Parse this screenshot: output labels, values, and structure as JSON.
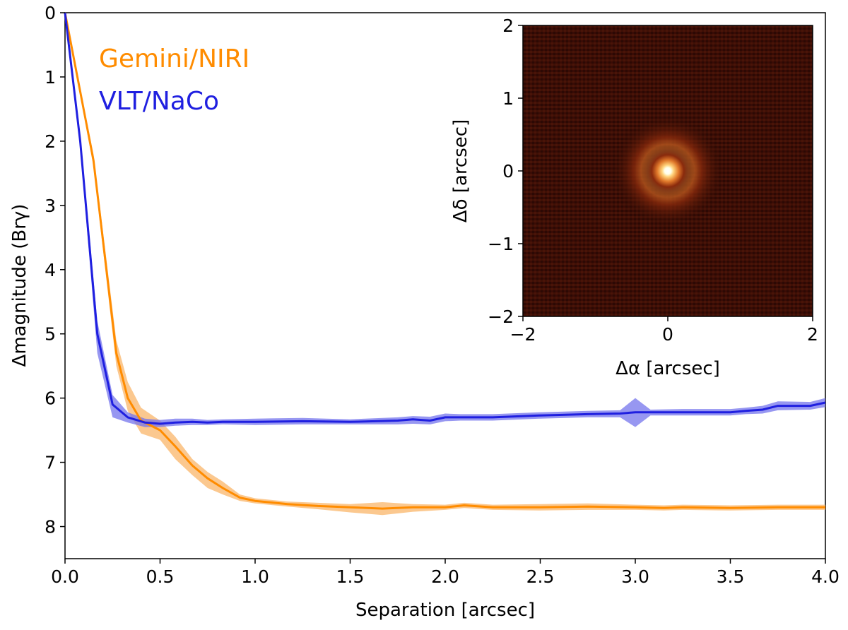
{
  "chart_data": [
    {
      "type": "line",
      "title": "",
      "xlabel": "Separation [arcsec]",
      "ylabel": "Δmagnitude (Brγ)",
      "xlim": [
        0.0,
        4.0
      ],
      "ylim": [
        8.5,
        0.0
      ],
      "y_inverted": true,
      "xticks": [
        "0.0",
        "0.5",
        "1.0",
        "1.5",
        "2.0",
        "2.5",
        "3.0",
        "3.5",
        "4.0"
      ],
      "yticks": [
        "0",
        "1",
        "2",
        "3",
        "4",
        "5",
        "6",
        "7",
        "8"
      ],
      "legend_position": "top-left",
      "series": [
        {
          "name": "Gemini/NIRI",
          "color": "#ff8c00",
          "band_color": "#f9b66a",
          "x": [
            0.0,
            0.15,
            0.27,
            0.33,
            0.4,
            0.5,
            0.58,
            0.67,
            0.75,
            0.83,
            0.92,
            1.0,
            1.17,
            1.33,
            1.5,
            1.67,
            1.83,
            2.0,
            2.1,
            2.25,
            2.5,
            2.75,
            3.0,
            3.15,
            3.25,
            3.5,
            3.75,
            4.0
          ],
          "values": [
            0.0,
            2.3,
            5.3,
            6.0,
            6.35,
            6.5,
            6.75,
            7.05,
            7.25,
            7.4,
            7.55,
            7.6,
            7.65,
            7.68,
            7.7,
            7.72,
            7.7,
            7.7,
            7.67,
            7.7,
            7.7,
            7.69,
            7.7,
            7.71,
            7.7,
            7.71,
            7.7,
            7.7
          ],
          "lower": [
            0.0,
            2.2,
            5.1,
            5.75,
            6.15,
            6.35,
            6.6,
            6.95,
            7.15,
            7.3,
            7.5,
            7.56,
            7.61,
            7.63,
            7.65,
            7.62,
            7.65,
            7.66,
            7.63,
            7.66,
            7.65,
            7.64,
            7.66,
            7.67,
            7.66,
            7.67,
            7.66,
            7.66
          ],
          "upper": [
            0.0,
            2.4,
            5.5,
            6.2,
            6.55,
            6.65,
            6.95,
            7.2,
            7.4,
            7.5,
            7.6,
            7.64,
            7.69,
            7.73,
            7.78,
            7.82,
            7.77,
            7.74,
            7.71,
            7.74,
            7.75,
            7.74,
            7.74,
            7.75,
            7.74,
            7.75,
            7.74,
            7.74
          ]
        },
        {
          "name": "VLT/NaCo",
          "color": "#1f1fe0",
          "band_color": "#7474ec",
          "x": [
            0.0,
            0.08,
            0.17,
            0.25,
            0.33,
            0.42,
            0.5,
            0.58,
            0.67,
            0.75,
            0.83,
            1.0,
            1.25,
            1.5,
            1.75,
            1.83,
            1.92,
            2.0,
            2.08,
            2.25,
            2.5,
            2.75,
            2.92,
            3.0,
            3.08,
            3.25,
            3.5,
            3.58,
            3.67,
            3.75,
            3.92,
            4.0
          ],
          "values": [
            0.0,
            2.0,
            5.0,
            6.1,
            6.3,
            6.38,
            6.4,
            6.38,
            6.37,
            6.38,
            6.37,
            6.37,
            6.36,
            6.37,
            6.35,
            6.33,
            6.35,
            6.3,
            6.3,
            6.3,
            6.27,
            6.25,
            6.24,
            6.22,
            6.22,
            6.22,
            6.22,
            6.2,
            6.18,
            6.12,
            6.12,
            6.07
          ],
          "lower": [
            0.0,
            1.9,
            4.8,
            5.95,
            6.22,
            6.32,
            6.34,
            6.32,
            6.32,
            6.34,
            6.33,
            6.32,
            6.31,
            6.33,
            6.3,
            6.28,
            6.29,
            6.24,
            6.25,
            6.25,
            6.22,
            6.2,
            6.19,
            6.0,
            6.18,
            6.17,
            6.17,
            6.15,
            6.12,
            6.05,
            6.06,
            6.0
          ],
          "upper": [
            0.0,
            2.1,
            5.3,
            6.3,
            6.38,
            6.45,
            6.45,
            6.43,
            6.42,
            6.42,
            6.41,
            6.42,
            6.41,
            6.41,
            6.41,
            6.4,
            6.41,
            6.36,
            6.35,
            6.35,
            6.32,
            6.3,
            6.3,
            6.45,
            6.27,
            6.27,
            6.27,
            6.25,
            6.24,
            6.19,
            6.18,
            6.14
          ]
        }
      ],
      "legend": [
        "Gemini/NIRI",
        "VLT/NaCo"
      ]
    },
    {
      "type": "heatmap",
      "title": "",
      "xlabel": "Δα [arcsec]",
      "ylabel": "Δδ [arcsec]",
      "xlim": [
        -2,
        2
      ],
      "ylim": [
        -2,
        2
      ],
      "xticks": [
        "−2",
        "0",
        "2"
      ],
      "yticks": [
        "−2",
        "−1",
        "0",
        "1",
        "2"
      ],
      "source_center": [
        0.0,
        0.0
      ],
      "colormap": "afmhot"
    }
  ]
}
